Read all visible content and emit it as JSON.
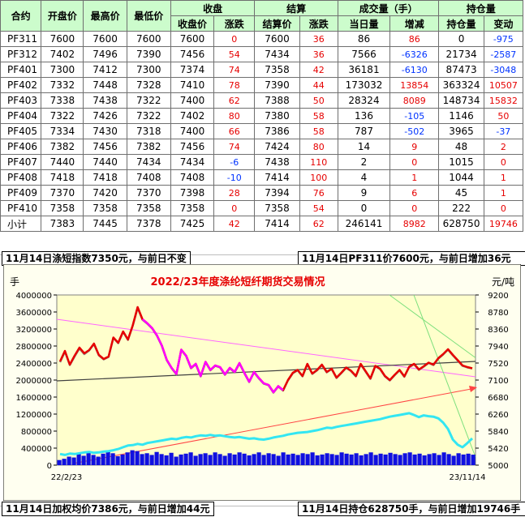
{
  "table": {
    "headers_top": [
      "合约",
      "开盘价",
      "最高价",
      "最低价",
      "收盘",
      "结算",
      "成交量（手）",
      "持仓量"
    ],
    "headers_sub": [
      "收盘价",
      "涨跌",
      "结算价",
      "涨跌",
      "当日量",
      "增减",
      "持仓量",
      "变动"
    ],
    "rows": [
      [
        "PF311",
        "7600",
        "7600",
        "7600",
        "7600",
        "0",
        "7600",
        "36",
        "86",
        "86",
        "0",
        "-975"
      ],
      [
        "PF312",
        "7402",
        "7496",
        "7390",
        "7456",
        "54",
        "7434",
        "36",
        "7566",
        "-6326",
        "21734",
        "-2587"
      ],
      [
        "PF401",
        "7300",
        "7412",
        "7300",
        "7374",
        "74",
        "7358",
        "42",
        "36181",
        "-6130",
        "87473",
        "-3048"
      ],
      [
        "PF402",
        "7332",
        "7448",
        "7328",
        "7410",
        "78",
        "7390",
        "44",
        "173032",
        "13854",
        "363324",
        "10507"
      ],
      [
        "PF403",
        "7338",
        "7438",
        "7322",
        "7400",
        "62",
        "7388",
        "50",
        "28324",
        "8089",
        "148734",
        "15832"
      ],
      [
        "PF404",
        "7322",
        "7426",
        "7322",
        "7402",
        "80",
        "7380",
        "58",
        "136",
        "-105",
        "1146",
        "50"
      ],
      [
        "PF405",
        "7334",
        "7430",
        "7318",
        "7400",
        "66",
        "7386",
        "58",
        "787",
        "-502",
        "3965",
        "-37"
      ],
      [
        "PF406",
        "7382",
        "7456",
        "7382",
        "7456",
        "74",
        "7424",
        "80",
        "14",
        "9",
        "48",
        "2"
      ],
      [
        "PF407",
        "7440",
        "7440",
        "7434",
        "7434",
        "-6",
        "7438",
        "110",
        "2",
        "0",
        "1015",
        "0"
      ],
      [
        "PF408",
        "7418",
        "7418",
        "7408",
        "7408",
        "-10",
        "7414",
        "100",
        "4",
        "1",
        "1044",
        "1"
      ],
      [
        "PF409",
        "7370",
        "7420",
        "7370",
        "7398",
        "28",
        "7394",
        "76",
        "9",
        "6",
        "45",
        "1"
      ],
      [
        "PF410",
        "7358",
        "7358",
        "7358",
        "7358",
        "0",
        "7358",
        "54",
        "0",
        "0",
        "222",
        "0"
      ],
      [
        "小计",
        "7383",
        "7445",
        "7378",
        "7425",
        "42",
        "7414",
        "62",
        "246141",
        "8982",
        "628750",
        "19746"
      ]
    ]
  },
  "info": {
    "short_index": "11月14日涤短指数7350元，与前日不变",
    "front_price": "11月14日PF311价7600元，与前日增加36元",
    "weighted_avg": "11月14日加权均价7386元，与前日增加44元",
    "open_interest": "11月14日持仓628750手，与前日增加19746手"
  },
  "chart_data": {
    "type": "line",
    "title": "2022/23年度涤纶短纤期货交易情况",
    "left_unit": "手",
    "right_unit": "元/吨",
    "x_labels": [
      "22/2/23",
      "23/11/14"
    ],
    "left_axis": {
      "min": 0,
      "max": 4000000,
      "ticks": [
        0,
        400000,
        800000,
        1200000,
        1600000,
        2000000,
        2400000,
        2800000,
        3200000,
        3600000,
        4000000
      ]
    },
    "right_axis": {
      "min": 5000,
      "max": 9200,
      "ticks": [
        5000,
        5420,
        5840,
        6260,
        6680,
        7100,
        7520,
        7940,
        8360,
        8780,
        9200
      ]
    },
    "colors": {
      "price_red": "#e60000",
      "price_magenta": "#ff00ff",
      "settle_gray": "#8c8c8c",
      "oi_cyan": "#33e6f2",
      "volume_blue": "#1010e0",
      "plot_bg": "#ffffcc",
      "frame_bg": "#fffff0",
      "trend_dark": "#404040"
    },
    "series": [
      {
        "axis": "right",
        "color": "price",
        "values": [
          7560,
          7820,
          7480,
          7700,
          7900,
          7760,
          7840,
          8000,
          7720,
          7620,
          7680,
          8150,
          8020,
          8300,
          8100,
          8450,
          8900,
          8600,
          8500,
          8380,
          8200,
          7950,
          7600,
          7400,
          7250,
          7850,
          7700,
          7400,
          7500,
          7200,
          7550,
          7350,
          7460,
          7420,
          7240,
          7400,
          7300,
          7520,
          7280,
          7060,
          7300,
          7150,
          7020,
          6980,
          6800,
          6950,
          6850,
          7100,
          7280,
          7350,
          7200,
          7500,
          7260,
          7350,
          7480,
          7300,
          7380,
          7160,
          7280,
          7410,
          7330,
          7200,
          7500,
          7320,
          7140,
          7450,
          7380,
          7200,
          7100,
          7230,
          7350,
          7190,
          7430,
          7500,
          7360,
          7440,
          7530,
          7480,
          7640,
          7740,
          7860,
          7720,
          7590,
          7460,
          7420,
          7390
        ]
      },
      {
        "axis": "right",
        "color": "settle",
        "values": [
          7540,
          7800,
          7470,
          7680,
          7880,
          7740,
          7830,
          7990,
          7710,
          7610,
          7670,
          8140,
          8010,
          8290,
          8090,
          8440,
          8880,
          8590,
          8490,
          8370,
          8190,
          7940,
          7590,
          7390,
          7240,
          7840,
          7690,
          7390,
          7490,
          7190,
          7540,
          7340,
          7450,
          7410,
          7230,
          7390,
          7290,
          7510,
          7270,
          7050,
          7290,
          7140,
          7010,
          6970,
          6790,
          6940,
          6840,
          7090,
          7270,
          7340,
          7190,
          7490,
          7250,
          7340,
          7470,
          7290,
          7370,
          7150,
          7270,
          7400,
          7320,
          7190,
          7490,
          7310,
          7130,
          7440,
          7370,
          7190,
          7090,
          7220,
          7340,
          7180,
          7420,
          7490,
          7350,
          7430,
          7520,
          7470,
          7630,
          7730,
          7850,
          7710,
          7580,
          7450,
          7410,
          7386
        ]
      },
      {
        "axis": "left",
        "color": "oi",
        "values": [
          260000,
          240000,
          270000,
          260000,
          280000,
          300000,
          310000,
          290000,
          300000,
          320000,
          330000,
          350000,
          380000,
          420000,
          460000,
          470000,
          500000,
          480000,
          520000,
          540000,
          560000,
          580000,
          600000,
          620000,
          610000,
          640000,
          660000,
          650000,
          680000,
          700000,
          690000,
          710000,
          690000,
          700000,
          680000,
          660000,
          650000,
          660000,
          640000,
          620000,
          630000,
          610000,
          600000,
          620000,
          650000,
          670000,
          690000,
          720000,
          740000,
          760000,
          770000,
          780000,
          800000,
          820000,
          850000,
          880000,
          870000,
          900000,
          920000,
          940000,
          960000,
          980000,
          1000000,
          1020000,
          1040000,
          1060000,
          1080000,
          1110000,
          1140000,
          1160000,
          1180000,
          1200000,
          1220000,
          1180000,
          1130000,
          1170000,
          1150000,
          1140000,
          1100000,
          1000000,
          850000,
          600000,
          480000,
          420000,
          520000,
          628750
        ]
      }
    ],
    "volume_bars": [
      120000,
      150000,
      200000,
      180000,
      260000,
      220000,
      300000,
      240000,
      200000,
      270000,
      320000,
      280000,
      210000,
      250000,
      300000,
      350000,
      330000,
      260000,
      280000,
      240000,
      310000,
      260000,
      230000,
      290000,
      200000,
      250000,
      270000,
      300000,
      220000,
      260000,
      280000,
      240000,
      300000,
      260000,
      220000,
      280000,
      250000,
      300000,
      270000,
      230000,
      260000,
      300000,
      240000,
      280000,
      260000,
      220000,
      300000,
      250000,
      270000,
      240000,
      280000,
      260000,
      300000,
      230000,
      250000,
      280000,
      260000,
      240000,
      300000,
      270000,
      250000,
      280000,
      230000,
      260000,
      300000,
      240000,
      270000,
      250000,
      290000,
      260000,
      240000,
      280000,
      300000,
      250000,
      270000,
      230000,
      260000,
      280000,
      240000,
      300000,
      260000,
      220000,
      280000,
      250000,
      270000,
      246141
    ]
  }
}
